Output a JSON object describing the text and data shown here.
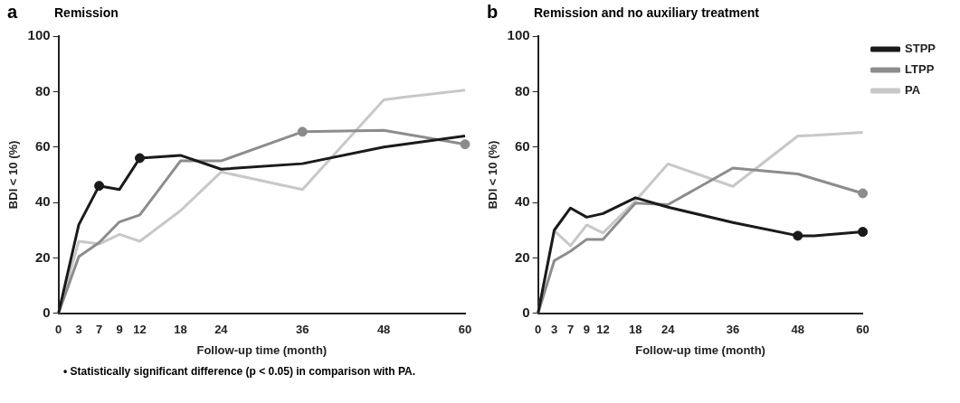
{
  "chart_data": [
    {
      "type": "line",
      "title": "Remission",
      "xlabel": "Follow-up time (month)",
      "ylabel": "BDI < 10 (%)",
      "annotations": [
        "a",
        "•  Statistically significant difference (p < 0.05) in comparison with PA."
      ],
      "categories": [
        "0",
        "3",
        "7",
        "9",
        "12",
        null,
        "18",
        null,
        "24",
        null,
        null,
        null,
        "36",
        null,
        null,
        null,
        "48",
        null,
        null,
        null,
        "60"
      ],
      "ylim": [
        0,
        100
      ],
      "yticks": [
        0,
        20,
        40,
        60,
        80,
        100
      ],
      "grid": false,
      "legend": false,
      "series": [
        {
          "color": "#1a1a1a",
          "marker": "none",
          "values": [
            0,
            32,
            46,
            44.7,
            56,
            null,
            57,
            null,
            52,
            null,
            null,
            null,
            54,
            null,
            null,
            null,
            60,
            null,
            null,
            null,
            64
          ]
        },
        {
          "color": "#8c8c8c",
          "marker": "none",
          "values": [
            0,
            20.5,
            25.5,
            33,
            35.5,
            null,
            55,
            null,
            55,
            null,
            null,
            null,
            65.5,
            null,
            null,
            null,
            66,
            null,
            null,
            null,
            61
          ]
        },
        {
          "color": "#c8c8c8",
          "marker": "none",
          "values": [
            0,
            26,
            25,
            28.5,
            26,
            null,
            37,
            null,
            51,
            null,
            null,
            null,
            44.7,
            null,
            null,
            null,
            77,
            78,
            null,
            null,
            80.5
          ]
        },
        {
          "type": "scatter",
          "color": "#1a1a1a",
          "marker": "circle",
          "x": [
            "7",
            "12"
          ],
          "values": [
            46,
            56
          ]
        },
        {
          "type": "scatter",
          "color": "#8c8c8c",
          "marker": "circle",
          "x": [
            "36",
            "60"
          ],
          "values": [
            65.5,
            61
          ]
        }
      ]
    },
    {
      "type": "line",
      "title": "Remission and no auxiliary treatment",
      "xlabel": "Follow-up time (month)",
      "ylabel": "BDI < 10 (%)",
      "annotations": [
        "b"
      ],
      "categories": [
        "0",
        "3",
        "7",
        "9",
        "12",
        null,
        "18",
        null,
        "24",
        null,
        null,
        null,
        "36",
        null,
        null,
        null,
        "48",
        null,
        null,
        null,
        "60"
      ],
      "ylim": [
        0,
        100
      ],
      "yticks": [
        0,
        20,
        40,
        60,
        80,
        100
      ],
      "grid": false,
      "legend": "top right",
      "series": [
        {
          "name": "STPP",
          "color": "#1a1a1a",
          "marker": "none",
          "values": [
            0,
            30,
            38,
            34.7,
            36,
            null,
            41.7,
            null,
            38.3,
            null,
            null,
            null,
            32.8,
            null,
            null,
            null,
            28,
            28,
            null,
            null,
            29.4
          ]
        },
        {
          "name": "LTPP",
          "color": "#8c8c8c",
          "marker": "none",
          "values": [
            0,
            19,
            22.4,
            26.7,
            26.7,
            null,
            39.8,
            null,
            39.2,
            null,
            null,
            null,
            52.4,
            null,
            null,
            null,
            50.3,
            null,
            null,
            null,
            43.3
          ]
        },
        {
          "name": "PA",
          "color": "#c8c8c8",
          "marker": "none",
          "values": [
            0,
            29.8,
            24.4,
            31.9,
            29,
            null,
            40.6,
            null,
            53.9,
            null,
            null,
            null,
            45.8,
            null,
            null,
            null,
            64,
            64.2,
            null,
            null,
            65.3
          ]
        },
        {
          "type": "scatter",
          "color": "#1a1a1a",
          "marker": "circle",
          "x": [
            "48",
            "60"
          ],
          "values": [
            28,
            29.4
          ]
        },
        {
          "type": "scatter",
          "color": "#8c8c8c",
          "marker": "circle",
          "x": [
            "60"
          ],
          "values": [
            43.3
          ]
        }
      ]
    }
  ]
}
